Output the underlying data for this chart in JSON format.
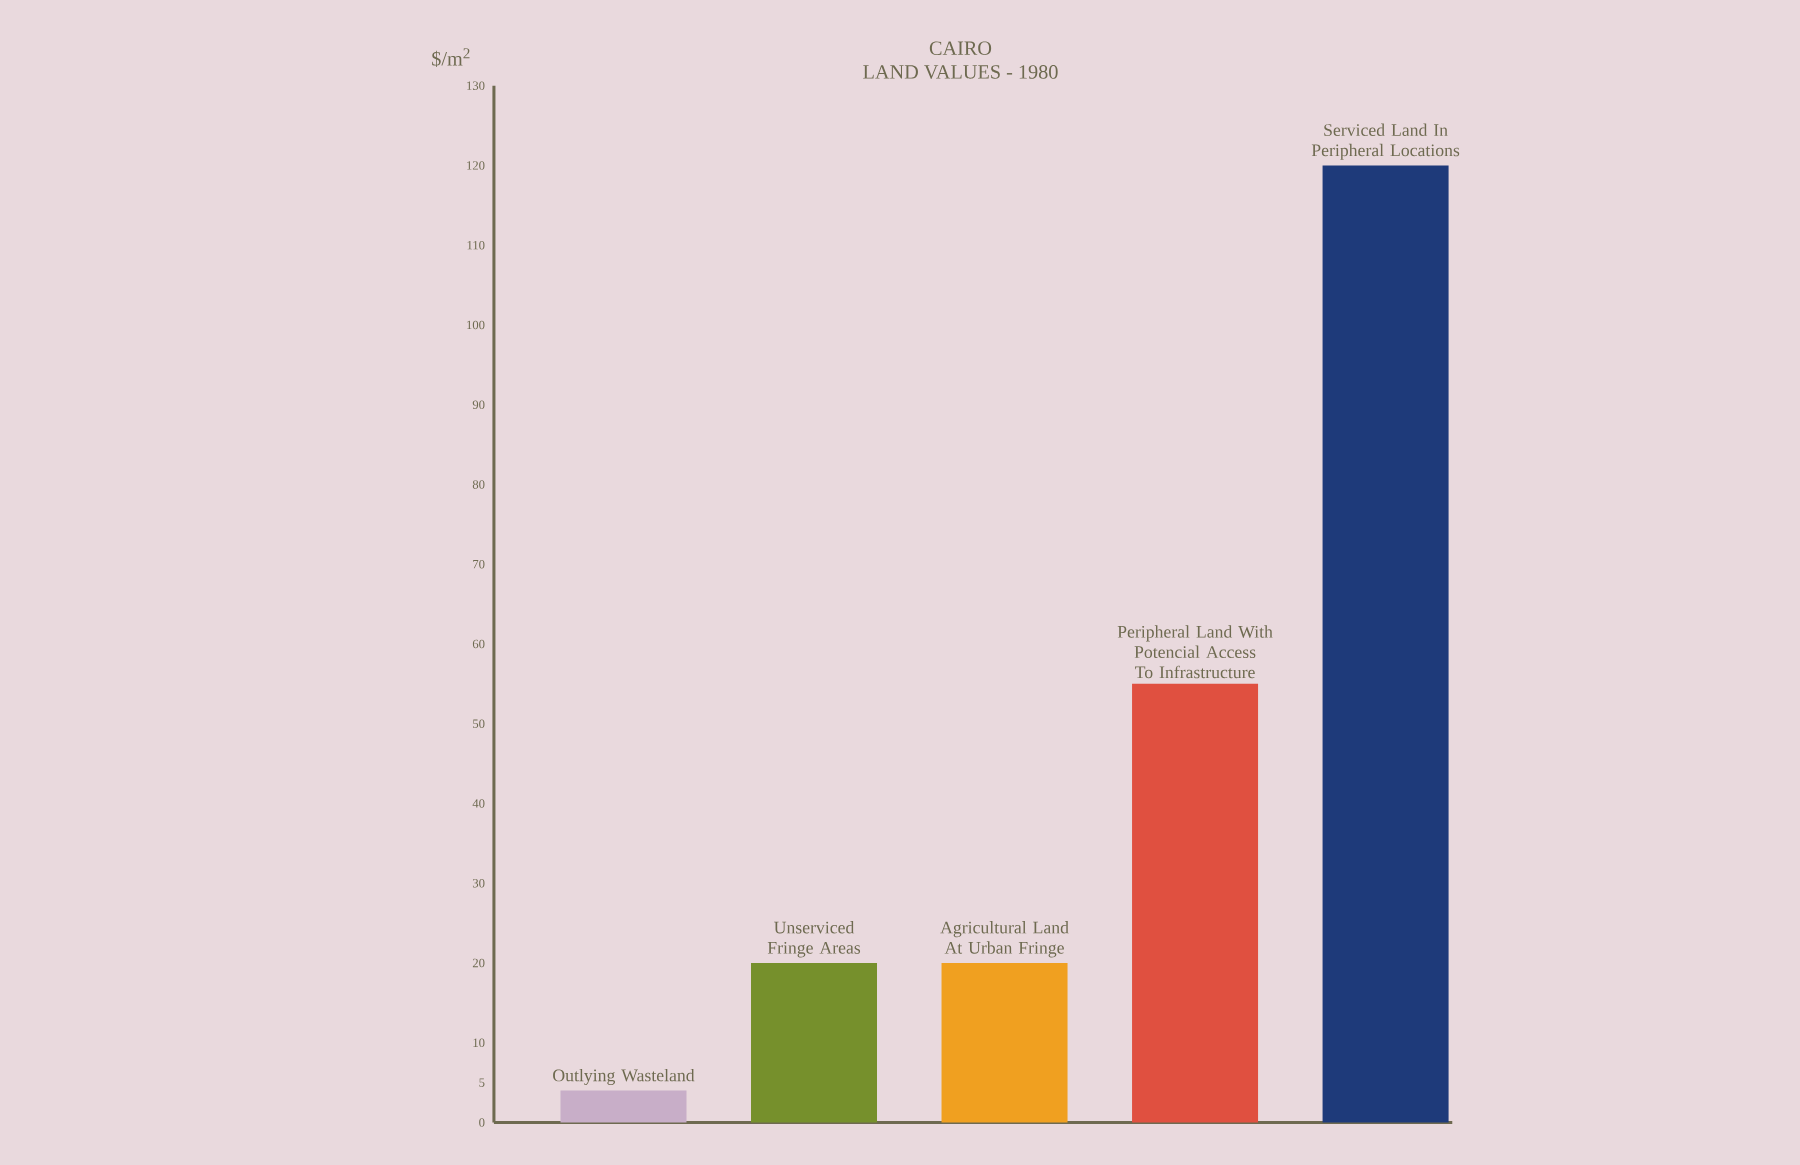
{
  "chart_data": {
    "type": "bar",
    "title": "CAIRO",
    "subtitle": "LAND VALUES - 1980",
    "ylabel": "$/m$^{2}$",
    "categories": [
      "Outlying Wasteland",
      "Unserviced Fringe Areas",
      "Agricultural Land At Urban Fringe",
      "Peripheral Land With Potencial Access To Infrastructure",
      "Serviced Land In Peripheral Locations"
    ],
    "values": [
      4,
      20,
      20,
      55,
      120
    ],
    "colors": [
      "#c8aec8",
      "#76902c",
      "#f0a020",
      "#e05040",
      "#1e3a7a"
    ],
    "ylim": [
      0,
      130
    ],
    "yticks": [
      0,
      5,
      10,
      20,
      30,
      40,
      50,
      60,
      70,
      80,
      90,
      100,
      110,
      120,
      130
    ]
  }
}
